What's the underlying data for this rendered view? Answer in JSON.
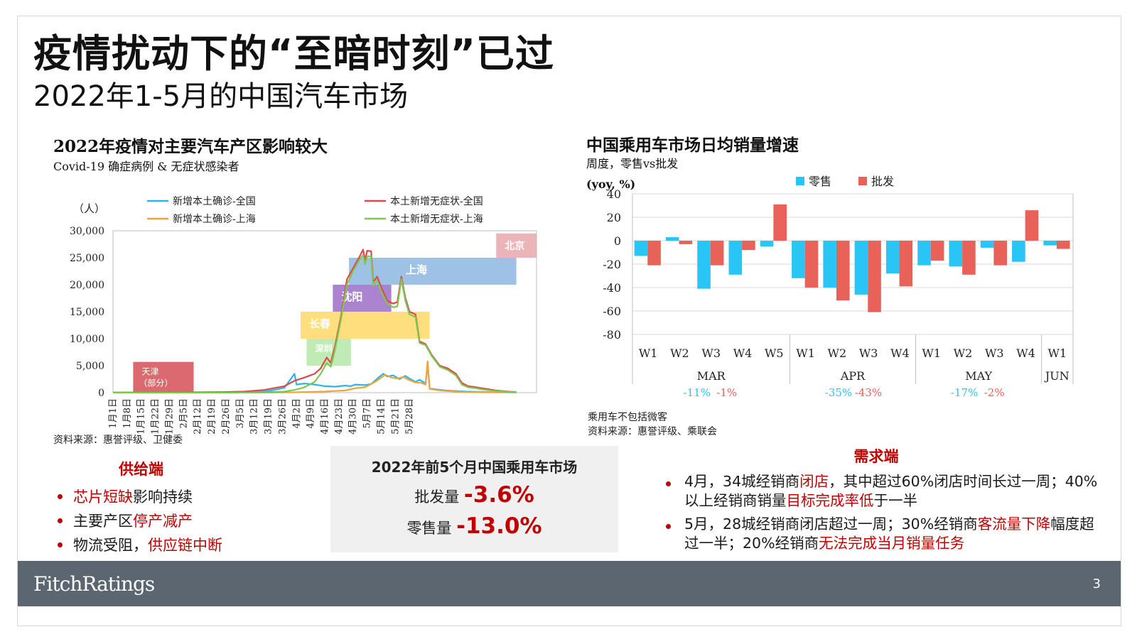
{
  "slide": {
    "title": "疫情扰动下的“至暗时刻”已过",
    "subtitle": "2022年1-5月的中国汽车市场",
    "page_number": "3",
    "logo": "FitchRatings"
  },
  "left_chart": {
    "title": "2022年疫情对主要汽车产区影响较大",
    "subtitle": "Covid-19 确症病例 & 无症状感染者",
    "source": "资料来源：惠誉评级、卫健委"
  },
  "right_chart": {
    "title": "中国乘用车市场日均销量增速",
    "subtitle": "周度，零售vs批发",
    "note": "乘用车不包括微客",
    "source": "资料来源：惠誉评级、乘联会"
  },
  "supply": {
    "heading": "供给端",
    "items": [
      {
        "hl": "芯片短缺",
        "rest": "影响持续",
        "pre": ""
      },
      {
        "pre": "主要产区",
        "hl": "停产减产",
        "rest": ""
      },
      {
        "pre": "物流受阻，",
        "hl": "供应链中断",
        "rest": ""
      }
    ]
  },
  "summary": {
    "title": "2022年前5个月中国乘用车市场",
    "wholesale_label": "批发量",
    "wholesale_value": "-3.6%",
    "retail_label": "零售量",
    "retail_value": "-13.0%"
  },
  "demand": {
    "heading": "需求端",
    "item1": {
      "a": "4月，34城经销商",
      "b": "闭店",
      "c": "，其中超过60%闭店时间长过一周；40%以上经销商销量",
      "d": "目标完成率低",
      "e": "于一半"
    },
    "item2": {
      "a": "5月，28城经销商闭店超过一周；30%经销商",
      "b": "客流量下降",
      "c": "幅度超过一半；20%经销商",
      "d": "无法完成当月销量任务",
      "e": ""
    }
  },
  "colors": {
    "retail": "#29c5f6",
    "wholesale": "#e8625a",
    "line_cn_confirmed": "#2bb5f0",
    "line_cn_asym": "#e0474c",
    "line_sh_confirmed": "#f2a33a",
    "line_sh_asym": "#7dc850",
    "accent_red": "#c00000"
  },
  "chart_data": [
    {
      "type": "line",
      "title": "2022年疫情对主要汽车产区影响较大",
      "subtitle": "Covid-19 确症病例 & 无症状感染者",
      "ylabel": "（人）",
      "ylim": [
        0,
        30000
      ],
      "yticks": [
        0,
        5000,
        10000,
        15000,
        20000,
        25000,
        30000
      ],
      "ytick_labels": [
        "0",
        "5,000",
        "10,000",
        "15,000",
        "20,000",
        "25,000",
        "30,000"
      ],
      "x_labels": [
        "1月1日",
        "1月8日",
        "1月15日",
        "1月22日",
        "1月29日",
        "2月5日",
        "2月12日",
        "2月19日",
        "2月26日",
        "3月5日",
        "3月12日",
        "3月19日",
        "3月26日",
        "4月2日",
        "4月9日",
        "4月16日",
        "4月23日",
        "4月30日",
        "5月7日",
        "5月14日",
        "5月21日",
        "5月28日"
      ],
      "x_range_days": [
        0,
        150
      ],
      "legend_position": "top",
      "series": [
        {
          "name": "新增本土确诊-全国",
          "color_key": "line_cn_confirmed",
          "points": [
            [
              0,
              20
            ],
            [
              10,
              30
            ],
            [
              20,
              40
            ],
            [
              30,
              30
            ],
            [
              40,
              50
            ],
            [
              50,
              60
            ],
            [
              60,
              80
            ],
            [
              68,
              100
            ],
            [
              75,
              200
            ],
            [
              80,
              500
            ],
            [
              85,
              900
            ],
            [
              90,
              3500
            ],
            [
              91,
              1500
            ],
            [
              95,
              1700
            ],
            [
              100,
              1500
            ],
            [
              105,
              1200
            ],
            [
              110,
              1100
            ],
            [
              115,
              1300
            ],
            [
              118,
              1200
            ],
            [
              120,
              1500
            ],
            [
              125,
              1400
            ],
            [
              128,
              1600
            ],
            [
              132,
              2900
            ],
            [
              134,
              3500
            ],
            [
              136,
              3000
            ],
            [
              139,
              3200
            ],
            [
              142,
              2500
            ],
            [
              145,
              3100
            ],
            [
              147,
              2600
            ],
            [
              150,
              2000
            ],
            [
              152,
              2400
            ],
            [
              155,
              1700
            ],
            [
              156,
              5200
            ],
            [
              157,
              800
            ],
            [
              160,
              600
            ],
            [
              165,
              400
            ],
            [
              170,
              300
            ],
            [
              175,
              200
            ],
            [
              180,
              150
            ],
            [
              185,
              100
            ],
            [
              190,
              80
            ],
            [
              200,
              60
            ]
          ]
        },
        {
          "name": "新增本土确诊-上海",
          "color_key": "line_sh_confirmed",
          "points": [
            [
              0,
              0
            ],
            [
              60,
              0
            ],
            [
              75,
              10
            ],
            [
              85,
              30
            ],
            [
              95,
              100
            ],
            [
              105,
              200
            ],
            [
              110,
              300
            ],
            [
              115,
              400
            ],
            [
              120,
              800
            ],
            [
              125,
              1000
            ],
            [
              130,
              2000
            ],
            [
              133,
              2800
            ],
            [
              135,
              3300
            ],
            [
              138,
              2800
            ],
            [
              141,
              2600
            ],
            [
              144,
              2900
            ],
            [
              147,
              2300
            ],
            [
              150,
              1900
            ],
            [
              153,
              1800
            ],
            [
              155,
              1500
            ],
            [
              156,
              5800
            ],
            [
              157,
              700
            ],
            [
              160,
              500
            ],
            [
              165,
              300
            ],
            [
              170,
              200
            ],
            [
              175,
              100
            ],
            [
              180,
              80
            ],
            [
              190,
              50
            ],
            [
              200,
              30
            ]
          ]
        },
        {
          "name": "本土新增无症状-全国",
          "color_key": "line_cn_asym",
          "points": [
            [
              0,
              30
            ],
            [
              20,
              40
            ],
            [
              40,
              60
            ],
            [
              55,
              100
            ],
            [
              65,
              200
            ],
            [
              75,
              500
            ],
            [
              85,
              1200
            ],
            [
              90,
              2200
            ],
            [
              95,
              2800
            ],
            [
              100,
              3500
            ],
            [
              103,
              4500
            ],
            [
              106,
              6500
            ],
            [
              108,
              5500
            ],
            [
              110,
              8500
            ],
            [
              113,
              14000
            ],
            [
              116,
              21000
            ],
            [
              119,
              23000
            ],
            [
              122,
              25000
            ],
            [
              124,
              26500
            ],
            [
              125,
              24500
            ],
            [
              126,
              26300
            ],
            [
              128,
              26200
            ],
            [
              129,
              20500
            ],
            [
              131,
              21500
            ],
            [
              133,
              19500
            ],
            [
              136,
              17000
            ],
            [
              139,
              16500
            ],
            [
              141,
              16800
            ],
            [
              143,
              21500
            ],
            [
              145,
              17500
            ],
            [
              147,
              15000
            ],
            [
              150,
              14500
            ],
            [
              152,
              9500
            ],
            [
              155,
              9000
            ],
            [
              158,
              7000
            ],
            [
              162,
              5000
            ],
            [
              166,
              4500
            ],
            [
              170,
              3500
            ],
            [
              173,
              1800
            ],
            [
              176,
              1200
            ],
            [
              180,
              1000
            ],
            [
              185,
              700
            ],
            [
              190,
              400
            ],
            [
              196,
              200
            ],
            [
              200,
              100
            ]
          ]
        },
        {
          "name": "本土新增无症状-上海",
          "color_key": "line_sh_asym",
          "points": [
            [
              0,
              0
            ],
            [
              60,
              0
            ],
            [
              75,
              50
            ],
            [
              85,
              200
            ],
            [
              90,
              500
            ],
            [
              95,
              1000
            ],
            [
              100,
              2000
            ],
            [
              103,
              3500
            ],
            [
              106,
              5500
            ],
            [
              108,
              4800
            ],
            [
              110,
              7800
            ],
            [
              113,
              13500
            ],
            [
              116,
              20000
            ],
            [
              119,
              22500
            ],
            [
              122,
              24500
            ],
            [
              124,
              25500
            ],
            [
              125,
              23800
            ],
            [
              126,
              25300
            ],
            [
              128,
              25200
            ],
            [
              129,
              19800
            ],
            [
              131,
              20800
            ],
            [
              133,
              18800
            ],
            [
              136,
              16500
            ],
            [
              139,
              15800
            ],
            [
              141,
              16000
            ],
            [
              143,
              21000
            ],
            [
              145,
              17000
            ],
            [
              147,
              14500
            ],
            [
              150,
              14000
            ],
            [
              152,
              9200
            ],
            [
              155,
              8800
            ],
            [
              158,
              6800
            ],
            [
              162,
              4800
            ],
            [
              166,
              4200
            ],
            [
              170,
              3200
            ],
            [
              173,
              1500
            ],
            [
              176,
              1000
            ],
            [
              180,
              800
            ],
            [
              185,
              500
            ],
            [
              190,
              300
            ],
            [
              196,
              150
            ],
            [
              200,
              60
            ]
          ]
        }
      ],
      "annotations": [
        {
          "label": "天津（部分）",
          "day_start": 10,
          "day_end": 40,
          "y_start": 0,
          "y_end": 5700,
          "color": "#d64f56"
        },
        {
          "label": "深圳",
          "day_start": 96,
          "day_end": 118,
          "y_start": 5000,
          "y_end": 10000,
          "color": "#b6e8a8"
        },
        {
          "label": "长春",
          "day_start": 93,
          "day_end": 157,
          "y_start": 10000,
          "y_end": 15000,
          "color": "#ffd966"
        },
        {
          "label": "沈阳",
          "day_start": 109,
          "day_end": 138,
          "y_start": 15000,
          "y_end": 20000,
          "color": "#9b6fc9"
        },
        {
          "label": "上海",
          "day_start": 117,
          "day_end": 200,
          "y_start": 20000,
          "y_end": 25000,
          "color": "#8db6e2"
        },
        {
          "label": "北京",
          "day_start": 190,
          "day_end": 210,
          "y_start": 25000,
          "y_end": 29500,
          "color": "#e8a7ad"
        }
      ]
    },
    {
      "type": "bar",
      "title": "中国乘用车市场日均销量增速",
      "subtitle": "周度，零售vs批发",
      "ylabel": "(yoy, %)",
      "ylim": [
        -80,
        40
      ],
      "yticks": [
        40,
        20,
        0,
        -20,
        -40,
        -60,
        -80
      ],
      "legend_position": "top",
      "categories": [
        "W1",
        "W2",
        "W3",
        "W4",
        "W5",
        "W1",
        "W2",
        "W3",
        "W4",
        "W1",
        "W2",
        "W3",
        "W4",
        "W1"
      ],
      "groups": [
        {
          "label": "MAR",
          "count": 5,
          "retail_total": "-11%",
          "wholesale_total": "-1%"
        },
        {
          "label": "APR",
          "count": 4,
          "retail_total": "-35%",
          "wholesale_total": "-43%"
        },
        {
          "label": "MAY",
          "count": 4,
          "retail_total": "-17%",
          "wholesale_total": "-2%"
        },
        {
          "label": "JUN",
          "count": 1,
          "retail_total": "",
          "wholesale_total": ""
        }
      ],
      "series": [
        {
          "name": "零售",
          "color_key": "retail",
          "values": [
            -13,
            3,
            -41,
            -29,
            -5,
            -32,
            -40,
            -46,
            -28,
            -21,
            -22,
            -6,
            -18,
            -4
          ]
        },
        {
          "name": "批发",
          "color_key": "wholesale",
          "values": [
            -21,
            -3,
            -21,
            -8,
            31,
            -40,
            -51,
            -61,
            -39,
            -17,
            -29,
            -21,
            26,
            -7
          ]
        }
      ]
    }
  ]
}
